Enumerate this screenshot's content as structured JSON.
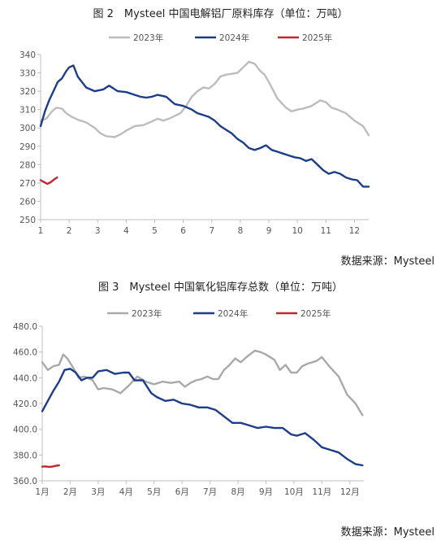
{
  "figures": [
    {
      "title": "图 2　Mysteel 中国电解铝厂原料库存（单位：万吨）",
      "source": "数据来源：Mysteel"
    },
    {
      "title": "图 3　Mysteel 中国氧化铝库存总数（单位：万吨）",
      "source": "数据来源：Mysteel"
    }
  ],
  "colors": {
    "y2023": "#bcbcbc",
    "y2024": "#1c3d8a",
    "y2025": "#c0282d"
  },
  "chart_data": [
    {
      "type": "line",
      "title": "图 2　Mysteel 中国电解铝厂原料库存（单位：万吨）",
      "ylim": [
        250,
        340
      ],
      "yticks": [
        "250",
        "260",
        "270",
        "280",
        "290",
        "300",
        "310",
        "320",
        "330",
        "340"
      ],
      "xlim": [
        1,
        12.5
      ],
      "xticks": [
        1,
        2,
        3,
        4,
        5,
        6,
        7,
        8,
        9,
        10,
        11,
        12
      ],
      "xticklabels": [
        "1",
        "2",
        "3",
        "4",
        "5",
        "6",
        "7",
        "8",
        "9",
        "10",
        "11",
        "12"
      ],
      "grid": false,
      "legend": "top",
      "series": [
        {
          "name": "2023年",
          "color": "#bcbcbc",
          "x": [
            1,
            1.2,
            1.4,
            1.55,
            1.75,
            1.9,
            2.1,
            2.3,
            2.6,
            2.9,
            3.1,
            3.3,
            3.6,
            3.8,
            4.0,
            4.3,
            4.6,
            4.9,
            5.1,
            5.3,
            5.5,
            5.7,
            5.9,
            6.1,
            6.3,
            6.5,
            6.7,
            6.9,
            7.1,
            7.3,
            7.5,
            7.7,
            7.9,
            8.1,
            8.3,
            8.5,
            8.7,
            8.85,
            9.0,
            9.3,
            9.6,
            9.8,
            10.0,
            10.2,
            10.5,
            10.8,
            11.0,
            11.2,
            11.4,
            11.7,
            12.0,
            12.3,
            12.5
          ],
          "y": [
            304,
            305,
            309,
            311,
            310.5,
            308,
            306,
            304.5,
            303,
            300,
            297,
            295.5,
            295,
            296.5,
            298.5,
            301,
            301.5,
            303.5,
            305,
            304,
            305,
            306.5,
            308,
            312,
            317,
            320,
            322,
            321.5,
            324,
            328,
            329,
            329.5,
            330,
            333,
            336,
            335,
            331,
            329,
            325,
            316,
            311,
            309,
            310,
            310.5,
            312,
            315,
            314,
            311,
            310,
            308,
            304,
            301,
            296
          ]
        },
        {
          "name": "2024年",
          "color": "#1c3d8a",
          "x": [
            1,
            1.15,
            1.3,
            1.45,
            1.6,
            1.75,
            1.9,
            2.0,
            2.15,
            2.3,
            2.6,
            2.9,
            3.2,
            3.4,
            3.7,
            4.0,
            4.3,
            4.5,
            4.7,
            4.9,
            5.1,
            5.4,
            5.7,
            6.0,
            6.3,
            6.5,
            6.7,
            6.9,
            7.1,
            7.3,
            7.5,
            7.7,
            7.9,
            8.1,
            8.3,
            8.5,
            8.7,
            8.9,
            9.1,
            9.3,
            9.5,
            9.7,
            9.9,
            10.1,
            10.3,
            10.5,
            10.7,
            10.9,
            11.1,
            11.3,
            11.5,
            11.7,
            11.9,
            12.1,
            12.3,
            12.5
          ],
          "y": [
            301,
            309,
            315,
            320,
            325,
            327,
            331,
            333,
            334,
            328,
            322,
            320,
            321,
            323,
            320,
            319.5,
            318,
            317,
            316.5,
            317,
            318,
            317,
            313,
            312,
            310,
            308,
            307,
            306,
            304,
            301,
            299,
            297,
            294,
            292,
            289,
            288,
            289,
            290.5,
            288,
            287,
            286,
            285,
            284,
            283.5,
            282,
            283,
            280,
            277,
            275,
            276,
            275,
            273,
            272,
            271.5,
            268,
            268
          ]
        },
        {
          "name": "2025年",
          "color": "#c0282d",
          "x": [
            1,
            1.12,
            1.24,
            1.36,
            1.48,
            1.58
          ],
          "y": [
            271.5,
            270.5,
            269.5,
            270.5,
            272,
            273
          ]
        }
      ]
    },
    {
      "type": "line",
      "title": "图 3　Mysteel 中国氧化铝库存总数（单位：万吨）",
      "ylim": [
        360,
        480
      ],
      "yticks": [
        "360.0",
        "380.0",
        "400.0",
        "420.0",
        "440.0",
        "460.0",
        "480.0"
      ],
      "xlim": [
        1,
        12.5
      ],
      "xticks": [
        1,
        2,
        3,
        4,
        5,
        6,
        7,
        8,
        9,
        10,
        11,
        12
      ],
      "xticklabels": [
        "1月",
        "2月",
        "3月",
        "4月",
        "5月",
        "6月",
        "7月",
        "8月",
        "9月",
        "10月",
        "11月",
        "12月"
      ],
      "grid": false,
      "legend": "top",
      "series": [
        {
          "name": "2023年",
          "color": "#a9a9a9",
          "x": [
            1,
            1.2,
            1.4,
            1.6,
            1.75,
            1.9,
            2.1,
            2.3,
            2.5,
            2.8,
            3.0,
            3.2,
            3.5,
            3.8,
            4.1,
            4.4,
            4.7,
            5.0,
            5.3,
            5.6,
            5.9,
            6.1,
            6.3,
            6.5,
            6.7,
            6.9,
            7.1,
            7.3,
            7.5,
            7.7,
            7.9,
            8.1,
            8.3,
            8.6,
            8.8,
            9.0,
            9.3,
            9.5,
            9.7,
            9.9,
            10.1,
            10.3,
            10.5,
            10.8,
            11.0,
            11.3,
            11.6,
            11.9,
            12.2,
            12.45
          ],
          "y": [
            452,
            446,
            449,
            450,
            458,
            455,
            448,
            440,
            441,
            438,
            431,
            432,
            431,
            428,
            434,
            441,
            437,
            435,
            437,
            436,
            437,
            433,
            436,
            438,
            439,
            441,
            439,
            439,
            446,
            450,
            455,
            452,
            456,
            461,
            460,
            458,
            454,
            446,
            450,
            444,
            444,
            449,
            451,
            453,
            456,
            448,
            441,
            427,
            420,
            411
          ]
        },
        {
          "name": "2024年",
          "color": "#1c3d8a",
          "x": [
            1,
            1.2,
            1.4,
            1.6,
            1.8,
            2.0,
            2.2,
            2.4,
            2.6,
            2.8,
            3.0,
            3.3,
            3.6,
            3.9,
            4.1,
            4.3,
            4.6,
            4.9,
            5.1,
            5.4,
            5.7,
            6.0,
            6.3,
            6.6,
            6.9,
            7.2,
            7.5,
            7.8,
            8.1,
            8.4,
            8.7,
            9.0,
            9.3,
            9.6,
            9.9,
            10.1,
            10.4,
            10.7,
            11.0,
            11.3,
            11.6,
            11.9,
            12.2,
            12.45
          ],
          "y": [
            414,
            422,
            430,
            437,
            446,
            447,
            444,
            438,
            440,
            440,
            445,
            446,
            443,
            444,
            444,
            438,
            438,
            428,
            425,
            422,
            423,
            420,
            419,
            417,
            417,
            415,
            410,
            405,
            405,
            403,
            401,
            402,
            401,
            401,
            396,
            395,
            397,
            392,
            386,
            384,
            382,
            377,
            373,
            372
          ]
        },
        {
          "name": "2025年",
          "color": "#c0282d",
          "x": [
            1,
            1.12,
            1.24,
            1.36,
            1.48,
            1.6
          ],
          "y": [
            371,
            371.2,
            370.8,
            371,
            371.6,
            372
          ]
        }
      ]
    }
  ]
}
